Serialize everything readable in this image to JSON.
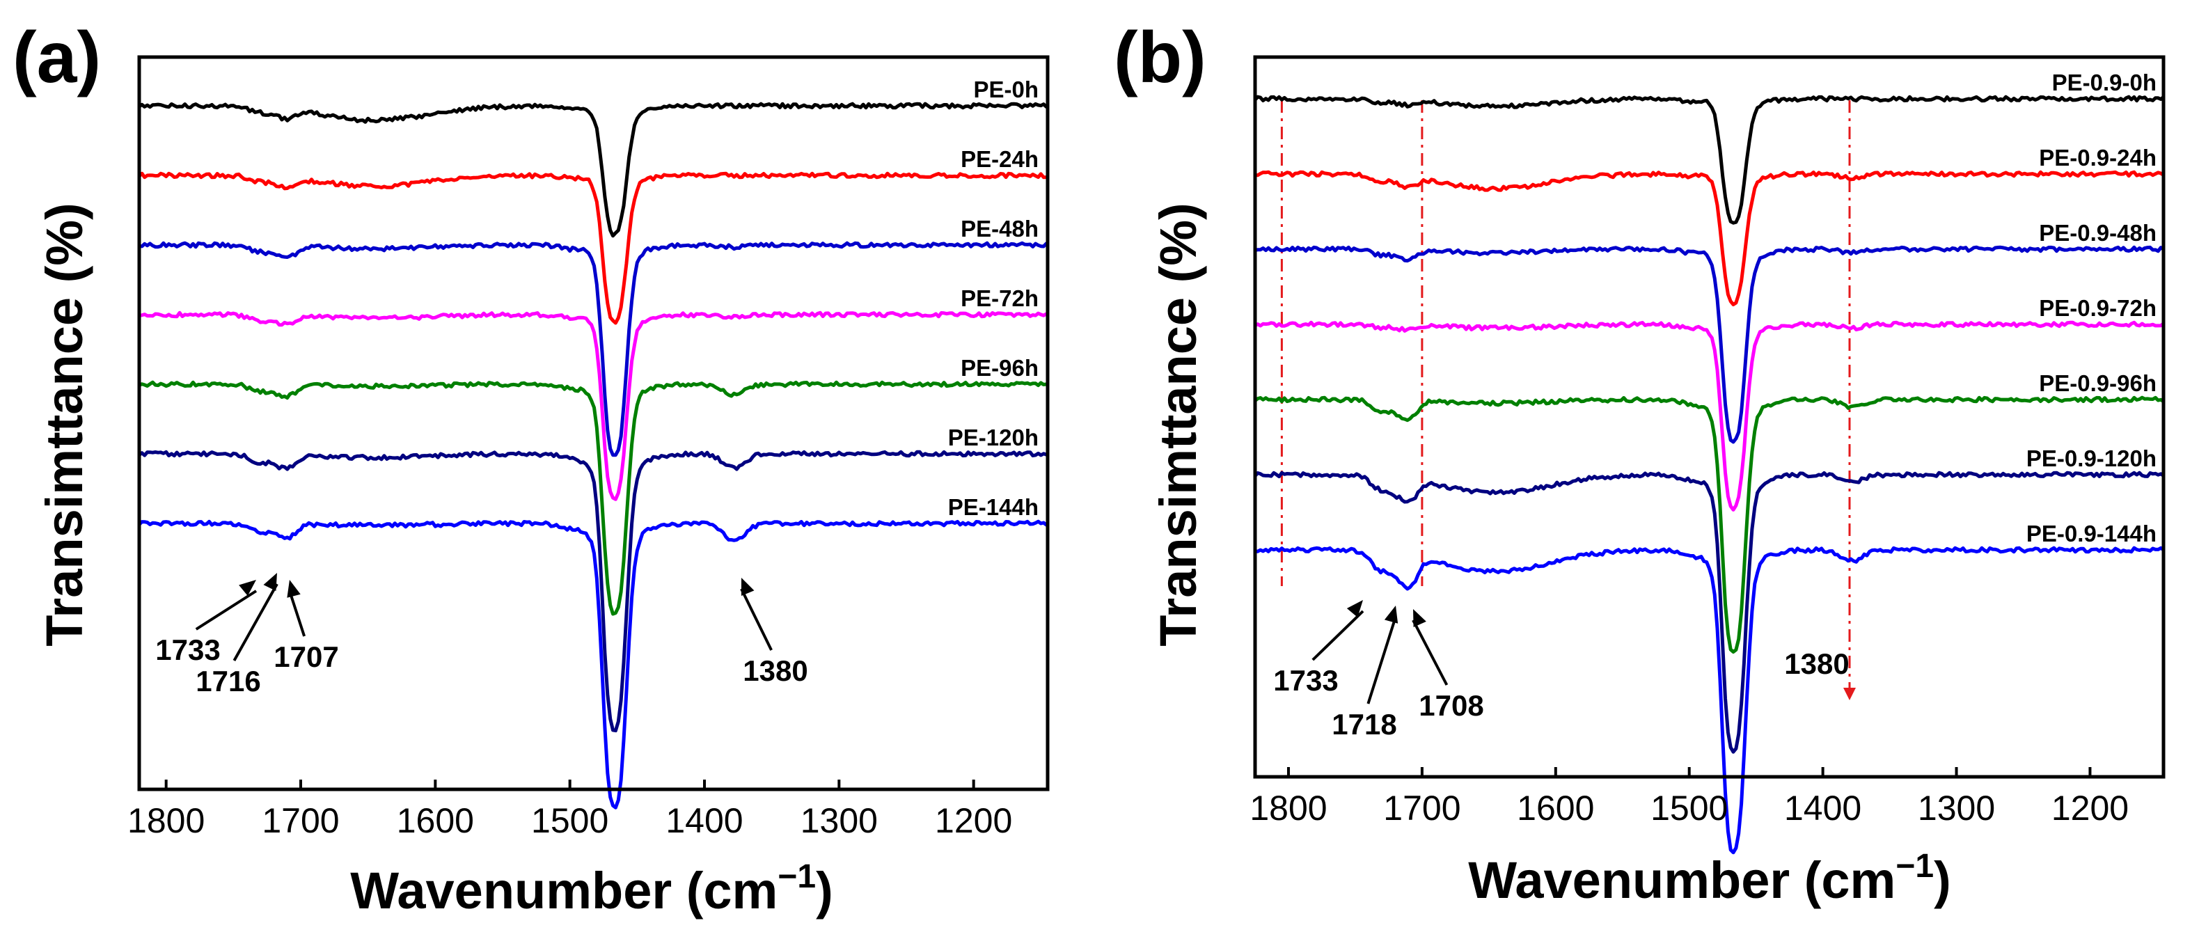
{
  "chart_data": [
    {
      "panel": "(a)",
      "type": "line",
      "xlabel": "Wavenumber (cm",
      "xlabel_sup": "−1",
      "xlabel_close": ")",
      "ylabel": "Transimttance (%)",
      "xlim": [
        1820,
        1145
      ],
      "x_reversed": true,
      "yticks_shown": false,
      "xticks": [
        1800,
        1700,
        1600,
        1500,
        1400,
        1300,
        1200
      ],
      "tick_labels": [
        "1800",
        "1700",
        "1600",
        "1500",
        "1400",
        "1300",
        "1200"
      ],
      "series": [
        {
          "name": "PE-0h",
          "color": "#000000",
          "offset": 0,
          "depth": 0.28,
          "c1380": 0,
          "c1716": 0.02,
          "broad": 0.04
        },
        {
          "name": "PE-24h",
          "color": "#ff0000",
          "offset": 1,
          "depth": 0.32,
          "c1380": 0,
          "c1716": 0.02,
          "broad": 0.03
        },
        {
          "name": "PE-48h",
          "color": "#0000cc",
          "offset": 2,
          "depth": 0.46,
          "c1380": 0.006,
          "c1716": 0.025,
          "broad": 0.01
        },
        {
          "name": "PE-72h",
          "color": "#ff00ff",
          "offset": 3,
          "depth": 0.4,
          "c1380": 0.008,
          "c1716": 0.02,
          "broad": 0.01
        },
        {
          "name": "PE-96h",
          "color": "#008000",
          "offset": 4,
          "depth": 0.5,
          "c1380": 0.03,
          "c1716": 0.025,
          "broad": 0.005
        },
        {
          "name": "PE-120h",
          "color": "#000080",
          "offset": 5,
          "depth": 0.6,
          "c1380": 0.04,
          "c1716": 0.03,
          "broad": 0.01
        },
        {
          "name": "PE-144h",
          "color": "#0000ff",
          "offset": 6,
          "depth": 0.62,
          "c1380": 0.05,
          "c1716": 0.03,
          "broad": 0.005
        }
      ],
      "annotations": [
        {
          "text": "1733",
          "wavenumber": 1733
        },
        {
          "text": "1716",
          "wavenumber": 1716
        },
        {
          "text": "1707",
          "wavenumber": 1707
        },
        {
          "text": "1380",
          "wavenumber": 1380
        }
      ]
    },
    {
      "panel": "(b)",
      "type": "line",
      "xlabel": "Wavenumber (cm",
      "xlabel_sup": "−1",
      "xlabel_close": ")",
      "ylabel": "Transimttance (%)",
      "xlim": [
        1825,
        1145
      ],
      "x_reversed": true,
      "yticks_shown": false,
      "xticks": [
        1800,
        1700,
        1600,
        1500,
        1400,
        1300,
        1200
      ],
      "tick_labels": [
        "1800",
        "1700",
        "1600",
        "1500",
        "1400",
        "1300",
        "1200"
      ],
      "series": [
        {
          "name": "PE-0.9-0h",
          "color": "#000000",
          "offset": 0,
          "depth": 0.27,
          "c1380": 0,
          "c1716": 0.01,
          "broad": 0.02
        },
        {
          "name": "PE-0.9-24h",
          "color": "#ff0000",
          "offset": 1,
          "depth": 0.28,
          "c1380": 0.01,
          "c1716": 0.02,
          "broad": 0.04
        },
        {
          "name": "PE-0.9-48h",
          "color": "#0000cc",
          "offset": 2,
          "depth": 0.42,
          "c1380": 0.01,
          "c1716": 0.02,
          "broad": 0.01
        },
        {
          "name": "PE-0.9-72h",
          "color": "#ff00ff",
          "offset": 3,
          "depth": 0.4,
          "c1380": 0.01,
          "c1716": 0.01,
          "broad": 0.01
        },
        {
          "name": "PE-0.9-96h",
          "color": "#008000",
          "offset": 4,
          "depth": 0.55,
          "c1380": 0.02,
          "c1716": 0.04,
          "broad": 0.01
        },
        {
          "name": "PE-0.9-120h",
          "color": "#000080",
          "offset": 5,
          "depth": 0.6,
          "c1380": 0.02,
          "c1716": 0.05,
          "broad": 0.05
        },
        {
          "name": "PE-0.9-144h",
          "color": "#0000ff",
          "offset": 6,
          "depth": 0.66,
          "c1380": 0.03,
          "c1716": 0.07,
          "broad": 0.06
        }
      ],
      "annotations": [
        {
          "text": "1733",
          "wavenumber": 1733
        },
        {
          "text": "1718",
          "wavenumber": 1718
        },
        {
          "text": "1708",
          "wavenumber": 1708
        },
        {
          "text": "1380",
          "wavenumber": 1380
        }
      ],
      "reference_lines_cm1": [
        1805,
        1700,
        1380
      ]
    }
  ]
}
